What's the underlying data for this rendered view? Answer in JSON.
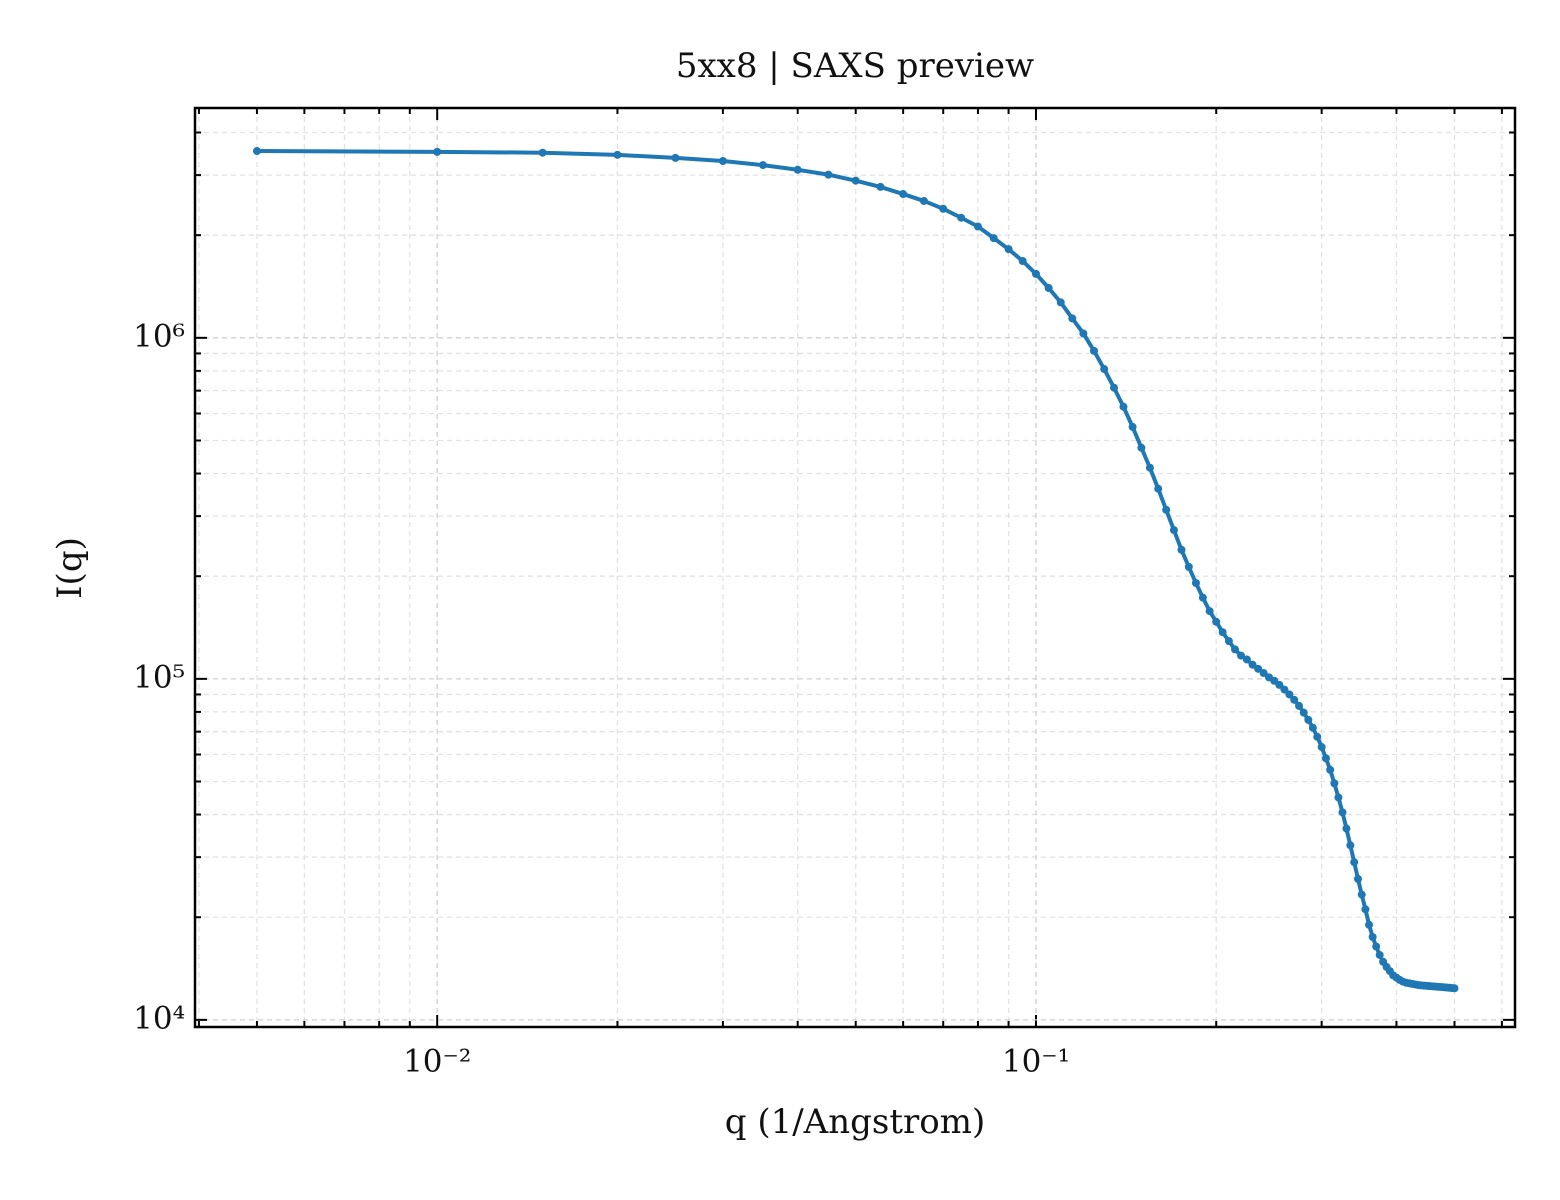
{
  "chart_data": {
    "type": "line",
    "title": "5xx8 | SAXS preview",
    "x_label": "q (1/Angstrom)",
    "y_label": "I(q)",
    "x": [
      0.005,
      0.01,
      0.015,
      0.02,
      0.025,
      0.03,
      0.035,
      0.04,
      0.045,
      0.05,
      0.055,
      0.06,
      0.065,
      0.07,
      0.075,
      0.08,
      0.085,
      0.09,
      0.095,
      0.1,
      0.105,
      0.11,
      0.115,
      0.12,
      0.125,
      0.13,
      0.135,
      0.14,
      0.145,
      0.15,
      0.155,
      0.16,
      0.165,
      0.17,
      0.175,
      0.18,
      0.185,
      0.19,
      0.195,
      0.2,
      0.205,
      0.21,
      0.215,
      0.22,
      0.225,
      0.23,
      0.235,
      0.24,
      0.245,
      0.25,
      0.255,
      0.26,
      0.265,
      0.27,
      0.275,
      0.28,
      0.285,
      0.29,
      0.295,
      0.3,
      0.305,
      0.31,
      0.315,
      0.32,
      0.325,
      0.33,
      0.335,
      0.34,
      0.345,
      0.35,
      0.355,
      0.36,
      0.365,
      0.37,
      0.375,
      0.38,
      0.385,
      0.39,
      0.395,
      0.4,
      0.405,
      0.41,
      0.415,
      0.42,
      0.425,
      0.43,
      0.435,
      0.44,
      0.445,
      0.45,
      0.455,
      0.46,
      0.465,
      0.47,
      0.475,
      0.48,
      0.485,
      0.49,
      0.495,
      0.5
    ],
    "values": [
      3530000,
      3510000,
      3490000,
      3440000,
      3370000,
      3300000,
      3210000,
      3110000,
      3010000,
      2890000,
      2770000,
      2640000,
      2520000,
      2390000,
      2250000,
      2120000,
      1960000,
      1820000,
      1680000,
      1540000,
      1400000,
      1270000,
      1140000,
      1030000,
      916000,
      810000,
      714000,
      628000,
      548000,
      476000,
      416000,
      361000,
      313000,
      273000,
      239000,
      213000,
      191000,
      173000,
      158000,
      147000,
      137000,
      129000,
      122000,
      117000,
      114000,
      110000,
      107000,
      104000,
      101000,
      98700,
      96000,
      93000,
      90000,
      86800,
      83300,
      79600,
      75800,
      71900,
      67600,
      63100,
      58500,
      54100,
      49400,
      44900,
      40600,
      36400,
      32500,
      29000,
      25900,
      23300,
      21100,
      19000,
      17500,
      16400,
      15500,
      14800,
      14300,
      13900,
      13500,
      13300,
      13100,
      12950,
      12850,
      12800,
      12750,
      12700,
      12650,
      12620,
      12600,
      12580,
      12560,
      12540,
      12520,
      12500,
      12480,
      12460,
      12440,
      12420,
      12400,
      12380
    ],
    "color": "#1f77b4",
    "markers": true,
    "xscale": "log",
    "yscale": "log",
    "xlim": [
      0.00394,
      0.631
    ],
    "ylim": [
      9530,
      4720000
    ],
    "xticks": [
      {
        "value": 0.01,
        "label": "10⁻²"
      },
      {
        "value": 0.1,
        "label": "10⁻¹"
      }
    ],
    "yticks": [
      {
        "value": 10000,
        "label": "10⁴"
      },
      {
        "value": 100000,
        "label": "10⁵"
      },
      {
        "value": 1000000,
        "label": "10⁶"
      }
    ],
    "xminorticks": [
      0.004,
      0.005,
      0.006,
      0.007,
      0.008,
      0.009,
      0.02,
      0.03,
      0.04,
      0.05,
      0.06,
      0.07,
      0.08,
      0.09,
      0.2,
      0.3,
      0.4,
      0.5,
      0.6
    ],
    "yminorticks": [
      20000,
      30000,
      40000,
      50000,
      60000,
      70000,
      80000,
      90000,
      200000,
      300000,
      400000,
      500000,
      600000,
      700000,
      800000,
      900000,
      2000000,
      3000000,
      4000000
    ],
    "grid": true
  }
}
